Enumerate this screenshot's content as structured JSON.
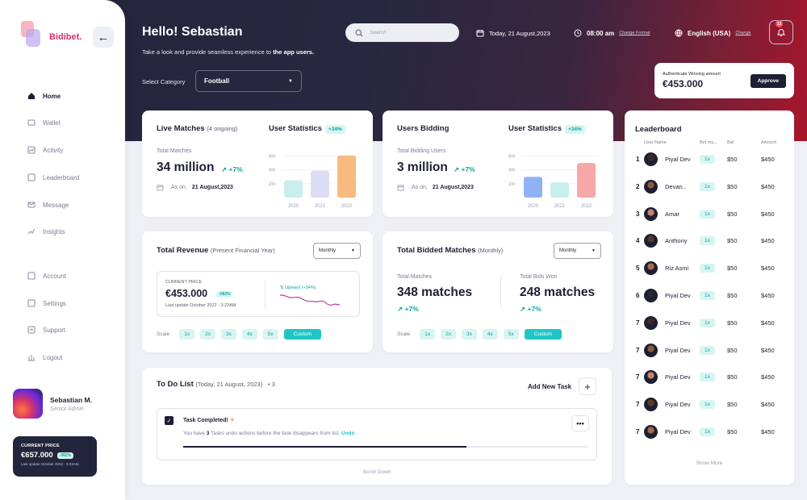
{
  "brand": {
    "name": "Bidibet."
  },
  "sidebar": {
    "items": [
      {
        "label": "Home",
        "icon": "home-icon"
      },
      {
        "label": "Wallet",
        "icon": "wallet-icon"
      },
      {
        "label": "Activity",
        "icon": "activity-icon"
      },
      {
        "label": "Leaderboard",
        "icon": "leaderboard-icon"
      },
      {
        "label": "Message",
        "icon": "message-icon"
      },
      {
        "label": "Insights",
        "icon": "insights-icon"
      },
      {
        "label": "Account",
        "icon": "account-icon"
      },
      {
        "label": "Settings",
        "icon": "settings-icon"
      },
      {
        "label": "Support",
        "icon": "support-icon"
      },
      {
        "label": "Logout",
        "icon": "logout-icon"
      }
    ],
    "user": {
      "name": "Sebastian M.",
      "role": "Senior Admin"
    },
    "price_card": {
      "label": "CURRENT PRICE",
      "value": "€657.000",
      "badge": "-082%",
      "updated": "Last update October 2022 - 3:23AM"
    }
  },
  "header": {
    "greeting": "Hello! Sebastian",
    "subtitle_pre": "Take a look and provide seamless experience to ",
    "subtitle_bold": "the app users.",
    "select_category_label": "Select Category",
    "category_value": "Football",
    "search_placeholder": "Search",
    "date": "Today, 21 August,2023",
    "time": "08:00 am",
    "change_format": "Change Format",
    "language": "English (USA)",
    "change": "Change",
    "notif_count": "12"
  },
  "auth_card": {
    "label": "Authenticate Winning amount",
    "amount": "€453.000",
    "button": "Approve"
  },
  "live_matches": {
    "title": "Live Matches",
    "ongoing": "(4 ongoing)",
    "total_label": "Total Matches",
    "total": "34 million",
    "growth": "+7%",
    "as_on_label": "As on,",
    "as_on_date": "21 August,2023",
    "stats_title": "User Statistics",
    "stats_badge": "+34%"
  },
  "users_bidding": {
    "title": "Users Bidding",
    "total_label": "Total Bidding Users",
    "total": "3 million",
    "growth": "+7%",
    "as_on_label": "As on,",
    "as_on_date": "21 August,2023",
    "stats_title": "User Statistics",
    "stats_badge": "+34%"
  },
  "chart_data": [
    {
      "type": "bar",
      "categories": [
        "2020",
        "2021",
        "2022"
      ],
      "values": [
        2.5,
        3.9,
        6.1
      ],
      "yticks": [
        "6m",
        "4m",
        "2m"
      ],
      "colors": [
        "#c9eeee",
        "#dcdcf5",
        "#f9b97f"
      ]
    },
    {
      "type": "bar",
      "categories": [
        "2020",
        "2021",
        "2022"
      ],
      "values": [
        3.0,
        2.2,
        5.0
      ],
      "yticks": [
        "6m",
        "4m",
        "2m"
      ],
      "colors": [
        "#8fb2f5",
        "#c9eeee",
        "#f7a7a7"
      ]
    }
  ],
  "revenue": {
    "title": "Total Revenue",
    "period": "(Present Financial Year)",
    "dropdown": "Monthly",
    "cp_label": "CURRENT PRICE",
    "value": "€453.000",
    "badge": "-082%",
    "updated": "Last update October 2022 - 3:23AM",
    "trend": "Upward (+34%)",
    "scale_label": "Scale",
    "scales": [
      "1x",
      "2x",
      "3x",
      "4x",
      "5x",
      "Custom"
    ]
  },
  "bidded": {
    "title": "Total Bidded Matches",
    "period": "(Monthly)",
    "dropdown": "Monthly",
    "left_label": "Total Matches",
    "left_value": "348 matches",
    "left_growth": "+7%",
    "right_label": "Total Bids Won",
    "right_value": "248 matches",
    "right_growth": "+7%",
    "scale_label": "Scale",
    "scales": [
      "1x",
      "2x",
      "3x",
      "4x",
      "5x",
      "Custom"
    ]
  },
  "todo": {
    "title": "To Do List",
    "date": "(Today, 21 August, 2023)",
    "count": "3",
    "add_label": "Add New Task",
    "task_title": "Task Completed!",
    "task_pre": "You have ",
    "task_num": "3",
    "task_post": " Tasks undo actions before the task disappears from list.",
    "undo": "Undo",
    "scroll": "Scroll Down"
  },
  "leaderboard": {
    "title": "Leaderboard",
    "headers": [
      "User Name",
      "Bet mu...",
      "Bid",
      "Amount"
    ],
    "rows": [
      {
        "rank": "1",
        "name": "Piyal Dev",
        "mult": "1x",
        "bid": "$50",
        "amount": "$450"
      },
      {
        "rank": "2",
        "name": "Devan..",
        "mult": "1x",
        "bid": "$50",
        "amount": "$450"
      },
      {
        "rank": "3",
        "name": "Amar",
        "mult": "1x",
        "bid": "$50",
        "amount": "$450"
      },
      {
        "rank": "4",
        "name": "Anthony",
        "mult": "1x",
        "bid": "$50",
        "amount": "$450"
      },
      {
        "rank": "5",
        "name": "Riz Asmi",
        "mult": "1x",
        "bid": "$50",
        "amount": "$450"
      },
      {
        "rank": "6",
        "name": "Piyal Dev",
        "mult": "1x",
        "bid": "$50",
        "amount": "$450"
      },
      {
        "rank": "7",
        "name": "Piyal Dev",
        "mult": "1x",
        "bid": "$50",
        "amount": "$450"
      },
      {
        "rank": "7",
        "name": "Piyal Dev",
        "mult": "1x",
        "bid": "$50",
        "amount": "$450"
      },
      {
        "rank": "7",
        "name": "Piyal Dev",
        "mult": "1x",
        "bid": "$50",
        "amount": "$450"
      },
      {
        "rank": "7",
        "name": "Piyal Dev",
        "mult": "1x",
        "bid": "$50",
        "amount": "$450"
      },
      {
        "rank": "7",
        "name": "Piyal Dev",
        "mult": "1x",
        "bid": "$50",
        "amount": "$450"
      }
    ],
    "show_more": "Show More"
  }
}
